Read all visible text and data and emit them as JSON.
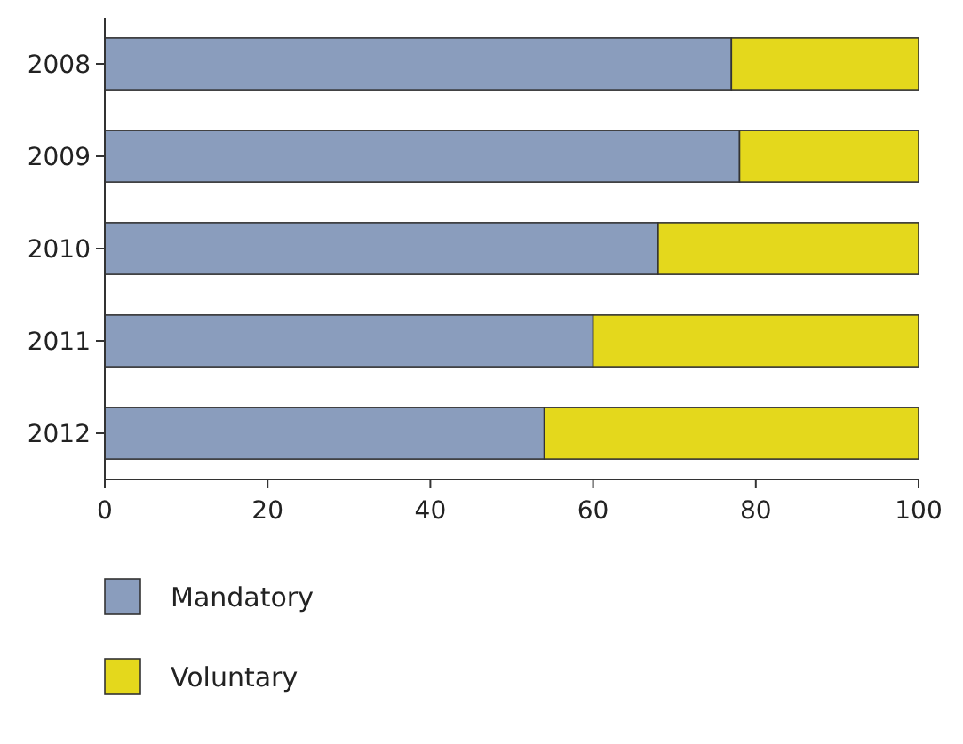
{
  "chart_data": {
    "type": "bar",
    "orientation": "horizontal",
    "stacked": true,
    "categories": [
      "2008",
      "2009",
      "2010",
      "2011",
      "2012"
    ],
    "series": [
      {
        "name": "Mandatory",
        "color": "#8a9dbd",
        "values": [
          77,
          78,
          68,
          60,
          54
        ]
      },
      {
        "name": "Voluntary",
        "color": "#e4d81c",
        "values": [
          23,
          22,
          32,
          40,
          46
        ]
      }
    ],
    "xlim": [
      0,
      100
    ],
    "xticks": [
      0,
      20,
      40,
      60,
      80,
      100
    ],
    "legend": "bottom left",
    "grid": false
  }
}
